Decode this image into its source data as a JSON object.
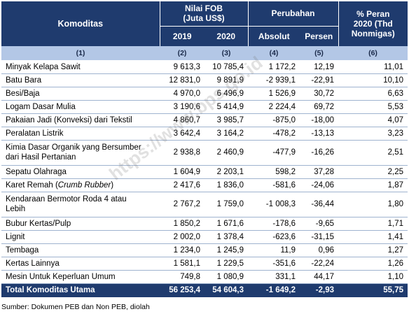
{
  "header": {
    "komoditas": "Komoditas",
    "nilai_fob_line1": "Nilai FOB",
    "nilai_fob_line2": "(Juta US$)",
    "perubahan": "Perubahan",
    "peran_line1": "% Peran",
    "peran_line2": "2020 (Thd",
    "peran_line3": "Nonmigas)",
    "year_2019": "2019",
    "year_2020": "2020",
    "absolut": "Absolut",
    "persen": "Persen"
  },
  "column_numbers": [
    "(1)",
    "(2)",
    "(3)",
    "(4)",
    "(5)",
    "(6)"
  ],
  "rows": [
    {
      "name": "Minyak Kelapa Sawit",
      "v2019": "9 613,3",
      "v2020": "10 785,4",
      "absolut": "1 172,2",
      "persen": "12,19",
      "peran": "11,01"
    },
    {
      "name": "Batu Bara",
      "v2019": "12 831,0",
      "v2020": "9 891,9",
      "absolut": "-2 939,1",
      "persen": "-22,91",
      "peran": "10,10"
    },
    {
      "name": "Besi/Baja",
      "v2019": "4 970,0",
      "v2020": "6 496,9",
      "absolut": "1 526,9",
      "persen": "30,72",
      "peran": "6,63"
    },
    {
      "name": "Logam Dasar Mulia",
      "v2019": "3 190,6",
      "v2020": "5 414,9",
      "absolut": "2 224,4",
      "persen": "69,72",
      "peran": "5,53"
    },
    {
      "name": "Pakaian Jadi (Konveksi) dari Tekstil",
      "v2019": "4 860,7",
      "v2020": "3 985,7",
      "absolut": "-875,0",
      "persen": "-18,00",
      "peran": "4,07"
    },
    {
      "name": "Peralatan Listrik",
      "v2019": "3 642,4",
      "v2020": "3 164,2",
      "absolut": "-478,2",
      "persen": "-13,13",
      "peran": "3,23"
    },
    {
      "name_line1": "Kimia Dasar Organik yang Bersumber",
      "name_line2": "dari Hasil Pertanian",
      "v2019": "2 938,8",
      "v2020": "2 460,9",
      "absolut": "-477,9",
      "persen": "-16,26",
      "peran": "2,51"
    },
    {
      "name": "Sepatu Olahraga",
      "v2019": "1 604,9",
      "v2020": "2 203,1",
      "absolut": "598,2",
      "persen": "37,28",
      "peran": "2,25"
    },
    {
      "name_prefix": "Karet Remah (",
      "name_italic": "Crumb Rubber",
      "name_suffix": ")",
      "v2019": "2 417,6",
      "v2020": "1 836,0",
      "absolut": "-581,6",
      "persen": "-24,06",
      "peran": "1,87"
    },
    {
      "name_line1": "Kendaraan Bermotor Roda 4 atau",
      "name_line2": "Lebih",
      "v2019": "2 767,2",
      "v2020": "1 759,0",
      "absolut": "-1 008,3",
      "persen": "-36,44",
      "peran": "1,80"
    },
    {
      "name": "Bubur Kertas/Pulp",
      "v2019": "1 850,2",
      "v2020": "1 671,6",
      "absolut": "-178,6",
      "persen": "-9,65",
      "peran": "1,71"
    },
    {
      "name": "Lignit",
      "v2019": "2 002,0",
      "v2020": "1 378,4",
      "absolut": "-623,6",
      "persen": "-31,15",
      "peran": "1,41"
    },
    {
      "name": "Tembaga",
      "v2019": "1 234,0",
      "v2020": "1 245,9",
      "absolut": "11,9",
      "persen": "0,96",
      "peran": "1,27"
    },
    {
      "name": "Kertas Lainnya",
      "v2019": "1 581,1",
      "v2020": "1 229,5",
      "absolut": "-351,6",
      "persen": "-22,24",
      "peran": "1,26"
    },
    {
      "name": "Mesin Untuk Keperluan Umum",
      "v2019": "749,8",
      "v2020": "1 080,9",
      "absolut": "331,1",
      "persen": "44,17",
      "peran": "1,10"
    }
  ],
  "total": {
    "name": "Total Komoditas Utama",
    "v2019": "56 253,4",
    "v2020": "54 604,3",
    "absolut": "-1 649,2",
    "persen": "-2,93",
    "peran": "55,75"
  },
  "source": "Sumber: Dokumen PEB dan Non PEB, diolah",
  "watermark": "https://www.bps.go.id",
  "colors": {
    "header_bg": "#1f3b6e",
    "subheader_bg": "#b3c7e6",
    "row_border": "#9fb3cf"
  }
}
